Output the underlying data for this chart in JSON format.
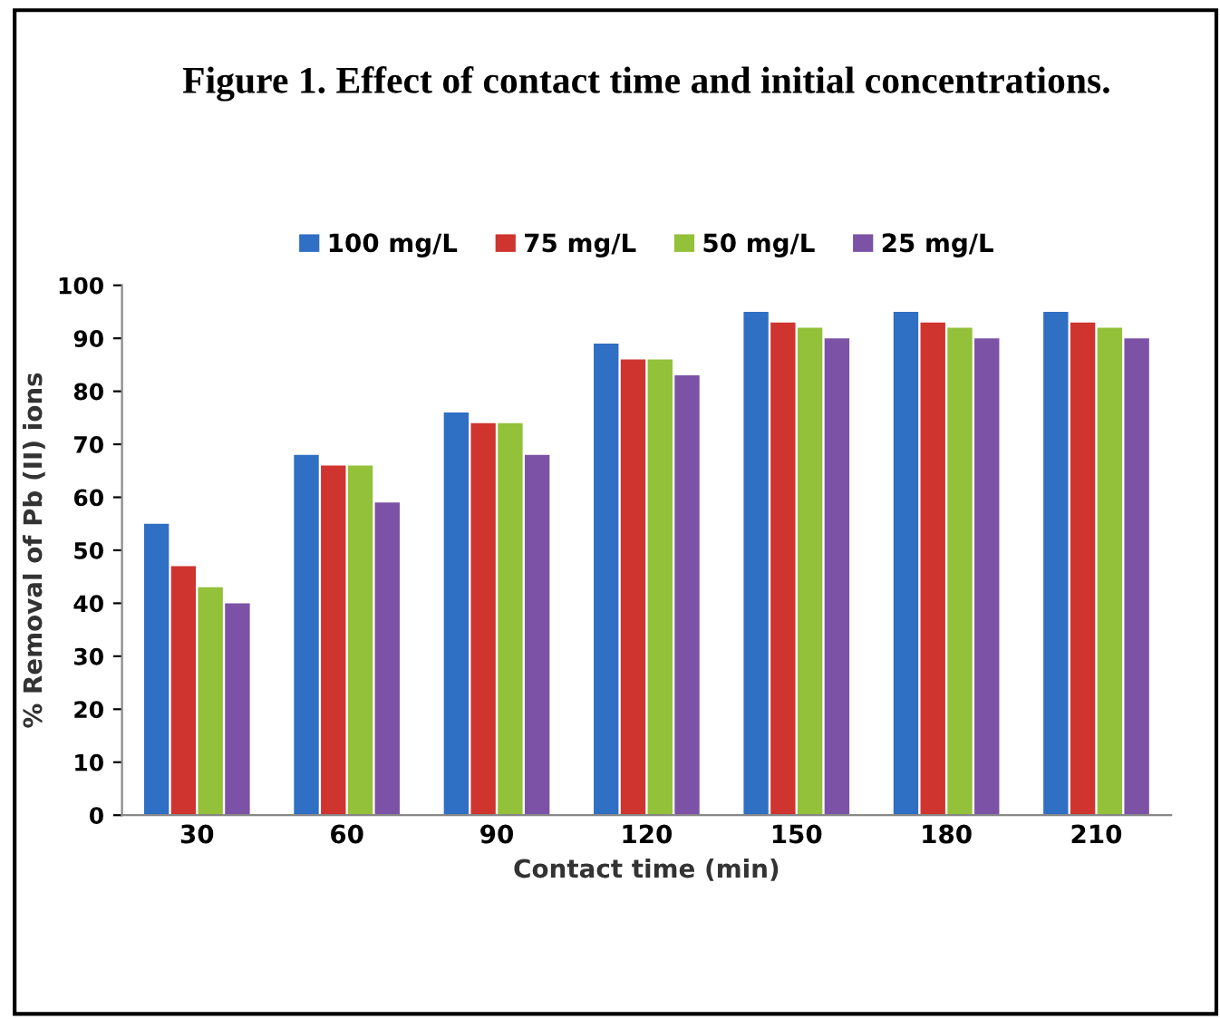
{
  "chart_data": {
    "type": "bar",
    "title": "Figure 1. Effect of contact time and initial concentrations.",
    "xlabel": "Contact time (min)",
    "ylabel": "% Removal of Pb (II) ions",
    "categories": [
      "30",
      "60",
      "90",
      "120",
      "150",
      "180",
      "210"
    ],
    "series": [
      {
        "name": "100 mg/L",
        "color": "#2f6fc4",
        "values": [
          55,
          68,
          76,
          89,
          95,
          95,
          95
        ]
      },
      {
        "name": "75 mg/L",
        "color": "#d0342f",
        "values": [
          47,
          66,
          74,
          86,
          93,
          93,
          93
        ]
      },
      {
        "name": "50 mg/L",
        "color": "#93c13a",
        "values": [
          43,
          66,
          74,
          86,
          92,
          92,
          92
        ]
      },
      {
        "name": "25 mg/L",
        "color": "#7c52a6",
        "values": [
          40,
          59,
          68,
          83,
          90,
          90,
          90
        ]
      }
    ],
    "ylim": [
      0,
      100
    ],
    "yticks": [
      0,
      10,
      20,
      30,
      40,
      50,
      60,
      70,
      80,
      90,
      100
    ],
    "grid": false,
    "legend": "top"
  }
}
